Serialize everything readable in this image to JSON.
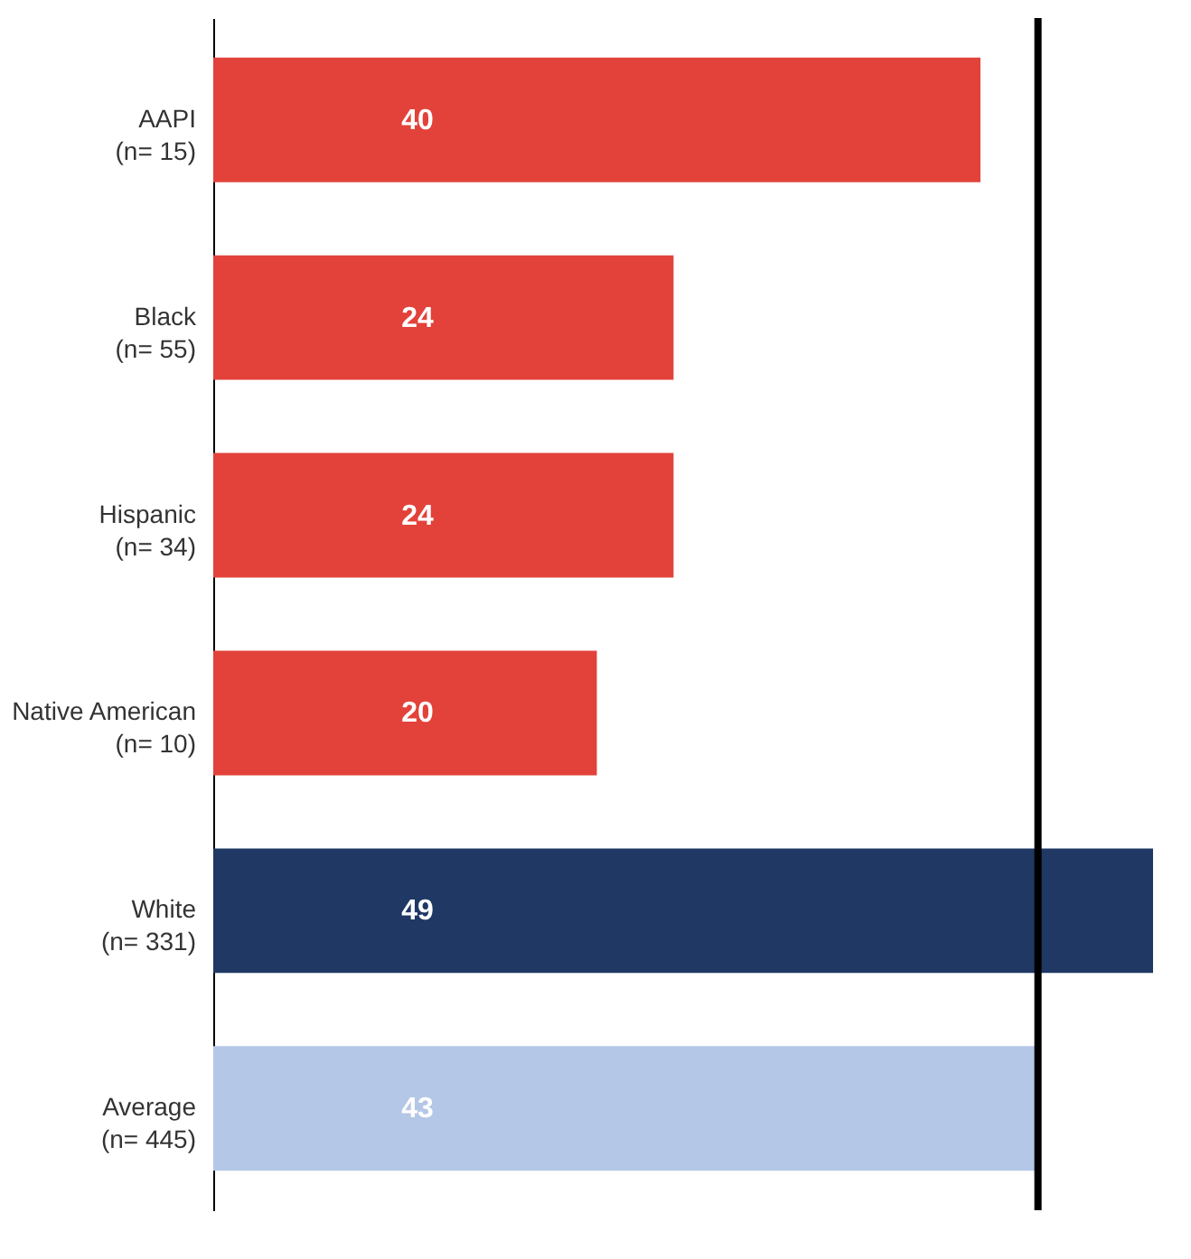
{
  "chart_data": {
    "type": "bar",
    "orientation": "horizontal",
    "data_labels": true,
    "categories": [
      "AAPI\n(n= 15)",
      "Black\n(n= 55)",
      "Hispanic\n(n= 34)",
      "Native American\n(n= 10)",
      "White\n(n= 331)",
      "Average\n(n= 445)"
    ],
    "values": [
      40,
      24,
      24,
      20,
      49,
      43
    ],
    "colors": [
      "#e2423a",
      "#e2423a",
      "#e2423a",
      "#e2423a",
      "#1f3864",
      "#b4c7e7"
    ],
    "ref_lines": [
      {
        "axis": "x",
        "value": 43,
        "color": "#000000"
      }
    ]
  }
}
